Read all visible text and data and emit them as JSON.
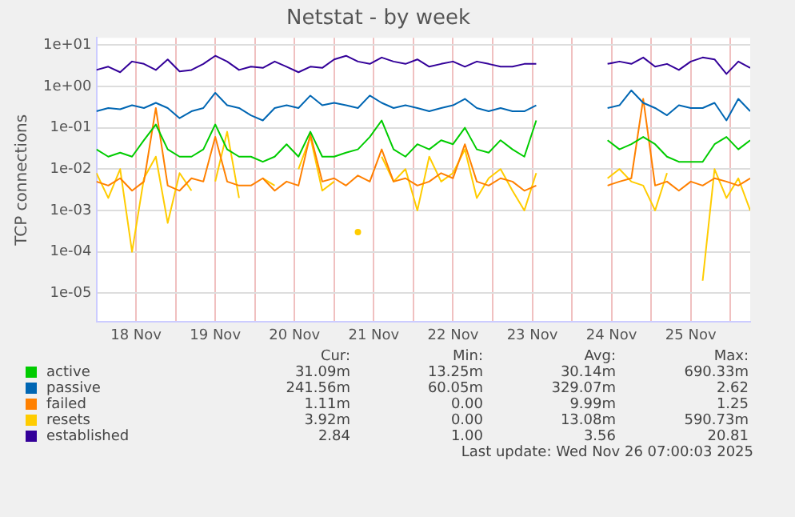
{
  "chart_data": {
    "type": "line",
    "title": "Netstat - by week",
    "ylabel": "TCP connections",
    "x": [
      "2025-11-18T00:00",
      "2025-11-18T03:36",
      "2025-11-18T07:12",
      "2025-11-18T10:48",
      "2025-11-18T14:24",
      "2025-11-18T18:00",
      "2025-11-18T21:36",
      "2025-11-19T01:12",
      "2025-11-19T04:48",
      "2025-11-19T08:24",
      "2025-11-19T12:00",
      "2025-11-19T15:36",
      "2025-11-19T19:12",
      "2025-11-19T22:48",
      "2025-11-20T02:24",
      "2025-11-20T06:00",
      "2025-11-20T09:36",
      "2025-11-20T13:12",
      "2025-11-20T16:48",
      "2025-11-20T20:24",
      "2025-11-21T00:00",
      "2025-11-21T03:36",
      "2025-11-21T07:12",
      "2025-11-21T10:48",
      "2025-11-21T14:24",
      "2025-11-21T18:00",
      "2025-11-21T21:36",
      "2025-11-22T01:12",
      "2025-11-22T04:48",
      "2025-11-22T08:24",
      "2025-11-22T12:00",
      "2025-11-22T15:36",
      "2025-11-22T19:12",
      "2025-11-22T22:48",
      "2025-11-23T02:24",
      "2025-11-23T06:00",
      "2025-11-23T09:36",
      "2025-11-23T13:12",
      "2025-11-23T16:48",
      "2025-11-23T20:24",
      "2025-11-24T00:00",
      "2025-11-24T03:36",
      "2025-11-24T07:12",
      "2025-11-24T10:48",
      "2025-11-24T14:24",
      "2025-11-24T18:00",
      "2025-11-24T21:36",
      "2025-11-25T01:12",
      "2025-11-25T04:48",
      "2025-11-25T08:24",
      "2025-11-25T12:00",
      "2025-11-25T15:36",
      "2025-11-25T19:12",
      "2025-11-25T22:48",
      "2025-11-26T02:24",
      "2025-11-26T06:00"
    ],
    "xlim": [
      "2025-11-18T00:00",
      "2025-11-26T06:00"
    ],
    "xticks": [
      {
        "value": "2025-11-18T00:00",
        "label": null
      },
      {
        "value": "2025-11-18T12:00",
        "label": "18 Nov"
      },
      {
        "value": "2025-11-19T00:00",
        "label": null
      },
      {
        "value": "2025-11-19T12:00",
        "label": "19 Nov"
      },
      {
        "value": "2025-11-20T00:00",
        "label": null
      },
      {
        "value": "2025-11-20T12:00",
        "label": "20 Nov"
      },
      {
        "value": "2025-11-21T00:00",
        "label": null
      },
      {
        "value": "2025-11-21T12:00",
        "label": "21 Nov"
      },
      {
        "value": "2025-11-22T00:00",
        "label": null
      },
      {
        "value": "2025-11-22T12:00",
        "label": "22 Nov"
      },
      {
        "value": "2025-11-23T00:00",
        "label": null
      },
      {
        "value": "2025-11-23T12:00",
        "label": "23 Nov"
      },
      {
        "value": "2025-11-24T00:00",
        "label": null
      },
      {
        "value": "2025-11-24T12:00",
        "label": "24 Nov"
      },
      {
        "value": "2025-11-25T00:00",
        "label": null
      },
      {
        "value": "2025-11-25T12:00",
        "label": "25 Nov"
      },
      {
        "value": "2025-11-26T00:00",
        "label": null
      }
    ],
    "log": "y",
    "ylim": [
      2e-06,
      15
    ],
    "yticks": [
      {
        "value": 1e-05,
        "label": "1e-05"
      },
      {
        "value": 0.0001,
        "label": "1e-04"
      },
      {
        "value": 0.001,
        "label": "1e-03"
      },
      {
        "value": 0.01,
        "label": "1e-02"
      },
      {
        "value": 0.1,
        "label": "1e-01"
      },
      {
        "value": 1,
        "label": "1e+00"
      },
      {
        "value": 10,
        "label": "1e+01"
      }
    ],
    "grid": true,
    "legend": "bottom",
    "marker": "none",
    "line_style": "solid",
    "series": [
      {
        "name": "active",
        "color": "#00cc00",
        "values": [
          0.03,
          0.02,
          0.025,
          0.02,
          0.05,
          0.12,
          0.03,
          0.02,
          0.02,
          0.03,
          0.12,
          0.03,
          0.02,
          0.02,
          0.015,
          0.02,
          0.04,
          0.02,
          0.08,
          0.02,
          0.02,
          0.025,
          0.03,
          0.06,
          0.15,
          0.03,
          0.02,
          0.04,
          0.03,
          0.05,
          0.04,
          0.1,
          0.03,
          0.025,
          0.05,
          0.03,
          0.02,
          0.15,
          null,
          null,
          null,
          null,
          null,
          0.05,
          0.03,
          0.04,
          0.06,
          0.04,
          0.02,
          0.015,
          0.015,
          0.015,
          0.04,
          0.06,
          0.03,
          0.05
        ]
      },
      {
        "name": "passive",
        "color": "#0066b3",
        "values": [
          0.25,
          0.3,
          0.28,
          0.35,
          0.3,
          0.4,
          0.3,
          0.17,
          0.25,
          0.3,
          0.7,
          0.35,
          0.3,
          0.2,
          0.15,
          0.3,
          0.35,
          0.3,
          0.6,
          0.35,
          0.4,
          0.35,
          0.3,
          0.6,
          0.4,
          0.3,
          0.35,
          0.3,
          0.25,
          0.3,
          0.35,
          0.5,
          0.3,
          0.25,
          0.3,
          0.25,
          0.25,
          0.35,
          null,
          null,
          null,
          null,
          null,
          0.3,
          0.35,
          0.8,
          0.4,
          0.3,
          0.2,
          0.35,
          0.3,
          0.3,
          0.4,
          0.15,
          0.5,
          0.25
        ]
      },
      {
        "name": "failed",
        "color": "#ff8000",
        "values": [
          0.005,
          0.004,
          0.006,
          0.003,
          0.005,
          0.3,
          0.004,
          0.003,
          0.006,
          0.005,
          0.06,
          0.005,
          0.004,
          0.004,
          0.006,
          0.003,
          0.005,
          0.004,
          0.07,
          0.005,
          0.006,
          0.004,
          0.007,
          0.005,
          0.03,
          0.005,
          0.006,
          0.004,
          0.005,
          0.008,
          0.006,
          0.04,
          0.005,
          0.004,
          0.006,
          0.005,
          0.003,
          0.004,
          null,
          null,
          null,
          null,
          null,
          0.004,
          0.005,
          0.006,
          0.5,
          0.004,
          0.005,
          0.003,
          0.005,
          0.004,
          0.006,
          0.005,
          0.004,
          0.006
        ]
      },
      {
        "name": "resets",
        "color": "#ffcc00",
        "values": [
          0.008,
          0.002,
          0.01,
          0.0001,
          0.006,
          0.02,
          0.0005,
          0.008,
          0.003,
          null,
          0.005,
          0.08,
          0.002,
          null,
          0.006,
          0.004,
          null,
          0.01,
          0.06,
          0.003,
          0.005,
          null,
          0.0003,
          null,
          0.02,
          0.005,
          0.01,
          0.001,
          0.02,
          0.005,
          0.008,
          0.03,
          0.002,
          0.006,
          0.01,
          0.003,
          0.001,
          0.008,
          null,
          null,
          null,
          null,
          null,
          0.006,
          0.01,
          0.005,
          0.004,
          0.001,
          0.008,
          null,
          null,
          2e-05,
          0.01,
          0.002,
          0.006,
          0.001
        ]
      },
      {
        "name": "established",
        "color": "#330099",
        "values": [
          2.5,
          3,
          2.2,
          4,
          3.5,
          2.5,
          4.5,
          2.3,
          2.5,
          3.5,
          5.5,
          4,
          2.5,
          3,
          2.8,
          4,
          3,
          2.2,
          3,
          2.8,
          4.5,
          5.5,
          4,
          3.5,
          5,
          4,
          3.5,
          4.5,
          3,
          3.5,
          4,
          3,
          4,
          3.5,
          3,
          3,
          3.5,
          3.5,
          null,
          null,
          null,
          null,
          null,
          3.5,
          4,
          3.5,
          5,
          3,
          3.5,
          2.5,
          4,
          5,
          4.5,
          2,
          4,
          2.8
        ]
      }
    ],
    "annotations": [
      "Cur:",
      "Min:",
      "Avg:",
      "Max:",
      "31.09m",
      "13.25m",
      "30.14m",
      "690.33m",
      "241.56m",
      "60.05m",
      "329.07m",
      "2.62",
      "1.11m",
      "0.00",
      "9.99m",
      "1.25",
      "3.92m",
      "0.00",
      "13.08m",
      "590.73m",
      "2.84",
      "1.00",
      "3.56",
      "20.81",
      "Last update: Wed Nov 26 07:00:03 2025"
    ]
  }
}
